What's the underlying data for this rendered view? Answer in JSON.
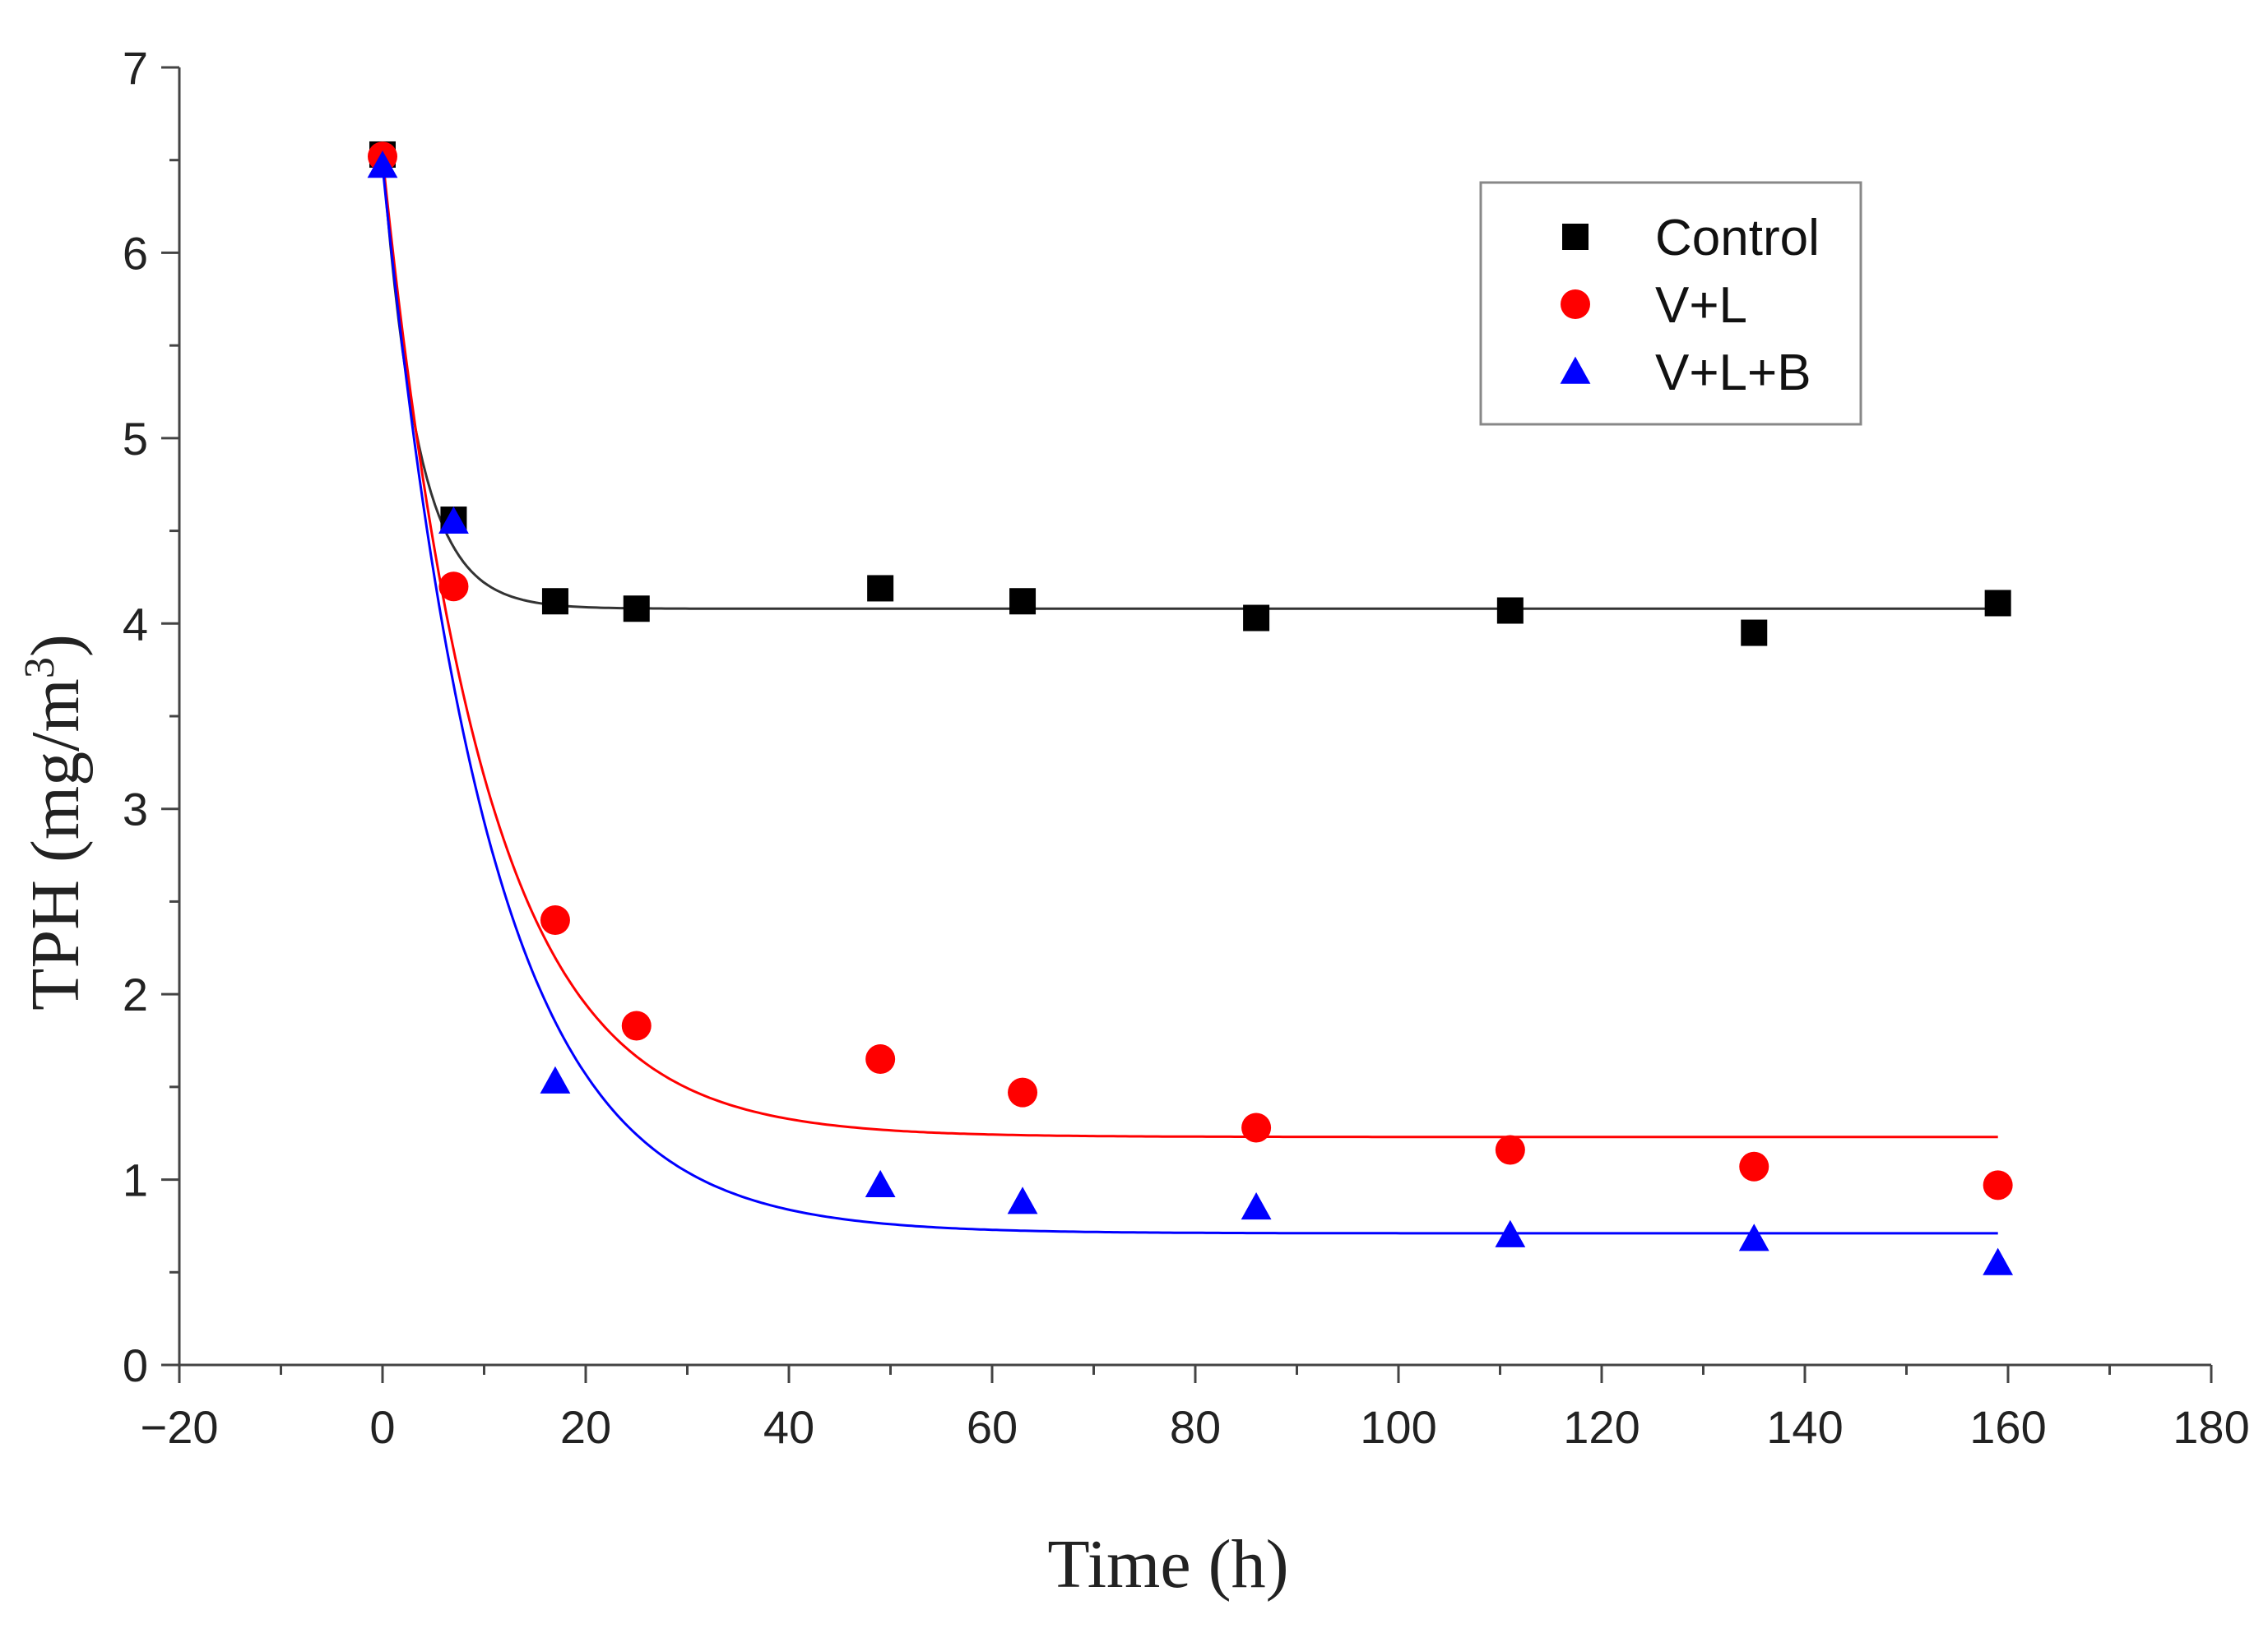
{
  "chart_data": {
    "type": "scatter",
    "title": "",
    "xlabel": "Time (h)",
    "ylabel_main": "TPH (mg/m",
    "ylabel_sup": "3",
    "ylabel_close": ")",
    "xlim": [
      -20,
      180
    ],
    "ylim": [
      0,
      7
    ],
    "x_ticks": [
      -20,
      0,
      20,
      40,
      60,
      80,
      100,
      120,
      140,
      160,
      180
    ],
    "x_tick_labels": [
      "−20",
      "0",
      "20",
      "40",
      "60",
      "80",
      "100",
      "120",
      "140",
      "160",
      "180"
    ],
    "y_ticks": [
      0,
      1,
      2,
      3,
      4,
      5,
      6,
      7
    ],
    "y_tick_labels": [
      "0",
      "1",
      "2",
      "3",
      "4",
      "5",
      "6",
      "7"
    ],
    "grid": false,
    "legend_position": "top-right",
    "series": [
      {
        "name": "Control",
        "marker": "square",
        "color": "#000000",
        "line_color": "#333333",
        "x": [
          0,
          7,
          17,
          25,
          49,
          63,
          86,
          111,
          135,
          159
        ],
        "y": [
          6.53,
          4.56,
          4.12,
          4.08,
          4.19,
          4.12,
          4.03,
          4.07,
          3.95,
          4.11
        ],
        "fit": {
          "model": "exponential_decay",
          "y_inf": 4.08,
          "amplitude": 2.45,
          "tau": 3.5
        }
      },
      {
        "name": "V+L",
        "marker": "circle",
        "color": "#ff0000",
        "line_color": "#ff0000",
        "x": [
          0,
          7,
          17,
          25,
          49,
          63,
          86,
          111,
          135,
          159
        ],
        "y": [
          6.52,
          4.2,
          2.4,
          1.83,
          1.65,
          1.47,
          1.28,
          1.16,
          1.07,
          0.97
        ],
        "fit": {
          "model": "exponential_decay",
          "y_inf": 1.23,
          "amplitude": 5.29,
          "tau": 10.0
        }
      },
      {
        "name": "V+L+B",
        "marker": "triangle",
        "color": "#0000ff",
        "line_color": "#0000ff",
        "x": [
          0,
          7,
          17,
          49,
          63,
          86,
          111,
          135,
          159
        ],
        "y": [
          6.47,
          4.55,
          1.53,
          0.97,
          0.88,
          0.85,
          0.7,
          0.68,
          0.55
        ],
        "fit": {
          "model": "exponential_decay",
          "y_inf": 0.71,
          "amplitude": 5.76,
          "tau": 10.5
        }
      }
    ]
  }
}
